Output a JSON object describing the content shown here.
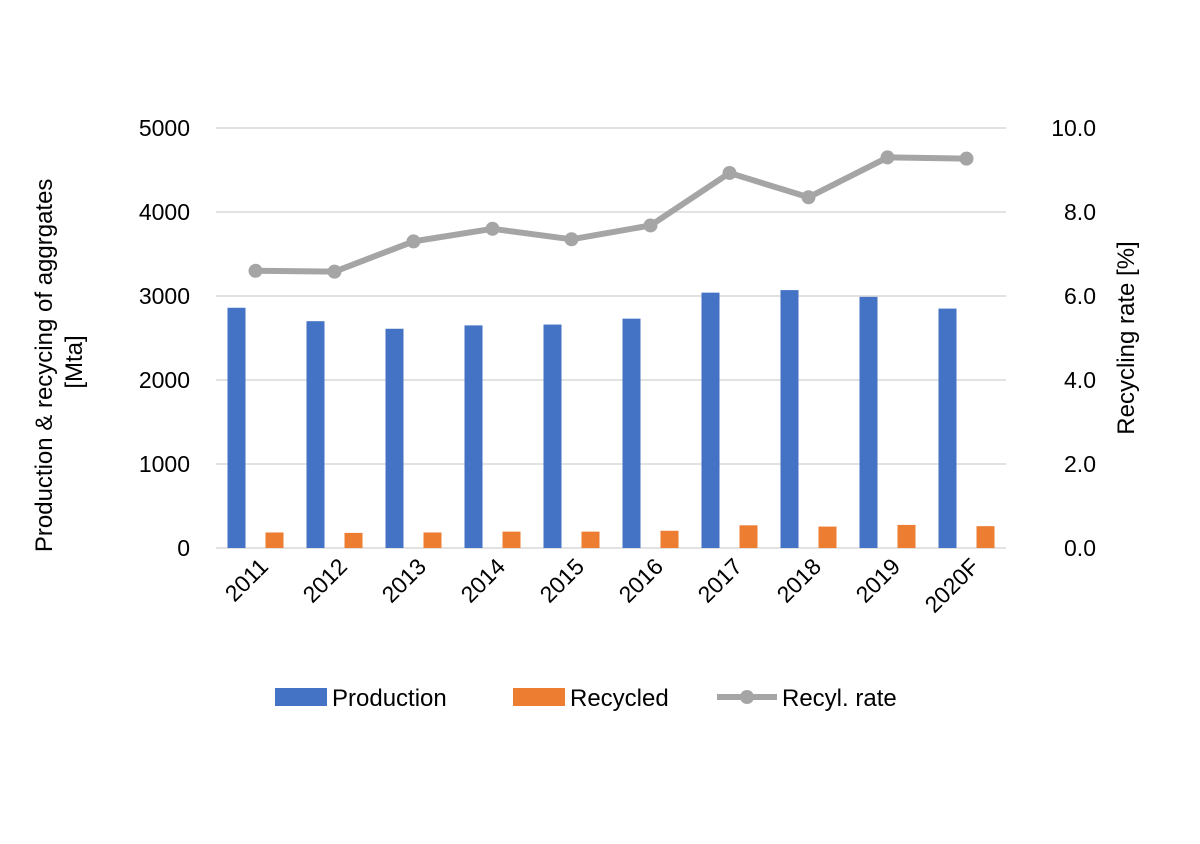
{
  "chart_data": {
    "type": "bar",
    "categories": [
      "2011",
      "2012",
      "2013",
      "2014",
      "2015",
      "2016",
      "2017",
      "2018",
      "2019",
      "2020F"
    ],
    "series": [
      {
        "name": "Production",
        "kind": "bar",
        "axis": "left",
        "color": "#4472c4",
        "values": [
          2860,
          2700,
          2610,
          2650,
          2660,
          2730,
          3040,
          3070,
          2990,
          2850
        ]
      },
      {
        "name": "Recycled",
        "kind": "bar",
        "axis": "left",
        "color": "#ed7d31",
        "values": [
          185,
          180,
          185,
          195,
          195,
          205,
          270,
          255,
          275,
          260
        ]
      },
      {
        "name": "Recyl. rate",
        "kind": "line",
        "axis": "right",
        "color": "#a5a5a5",
        "values": [
          6.6,
          6.58,
          7.3,
          7.6,
          7.35,
          7.68,
          8.93,
          8.35,
          9.3,
          9.27
        ]
      }
    ],
    "y_left": {
      "label_line1": "Production & recycing of aggrgates",
      "label_line2": "[Mta]",
      "ylim": [
        0,
        5000
      ],
      "ticks": [
        "0",
        "1000",
        "2000",
        "3000",
        "4000",
        "5000"
      ]
    },
    "y_right": {
      "label": "Recycling rate [%]",
      "ylim": [
        0,
        10
      ],
      "ticks": [
        "0.0",
        "2.0",
        "4.0",
        "6.0",
        "8.0",
        "10.0"
      ]
    },
    "grid": true,
    "legend": "bottom"
  }
}
